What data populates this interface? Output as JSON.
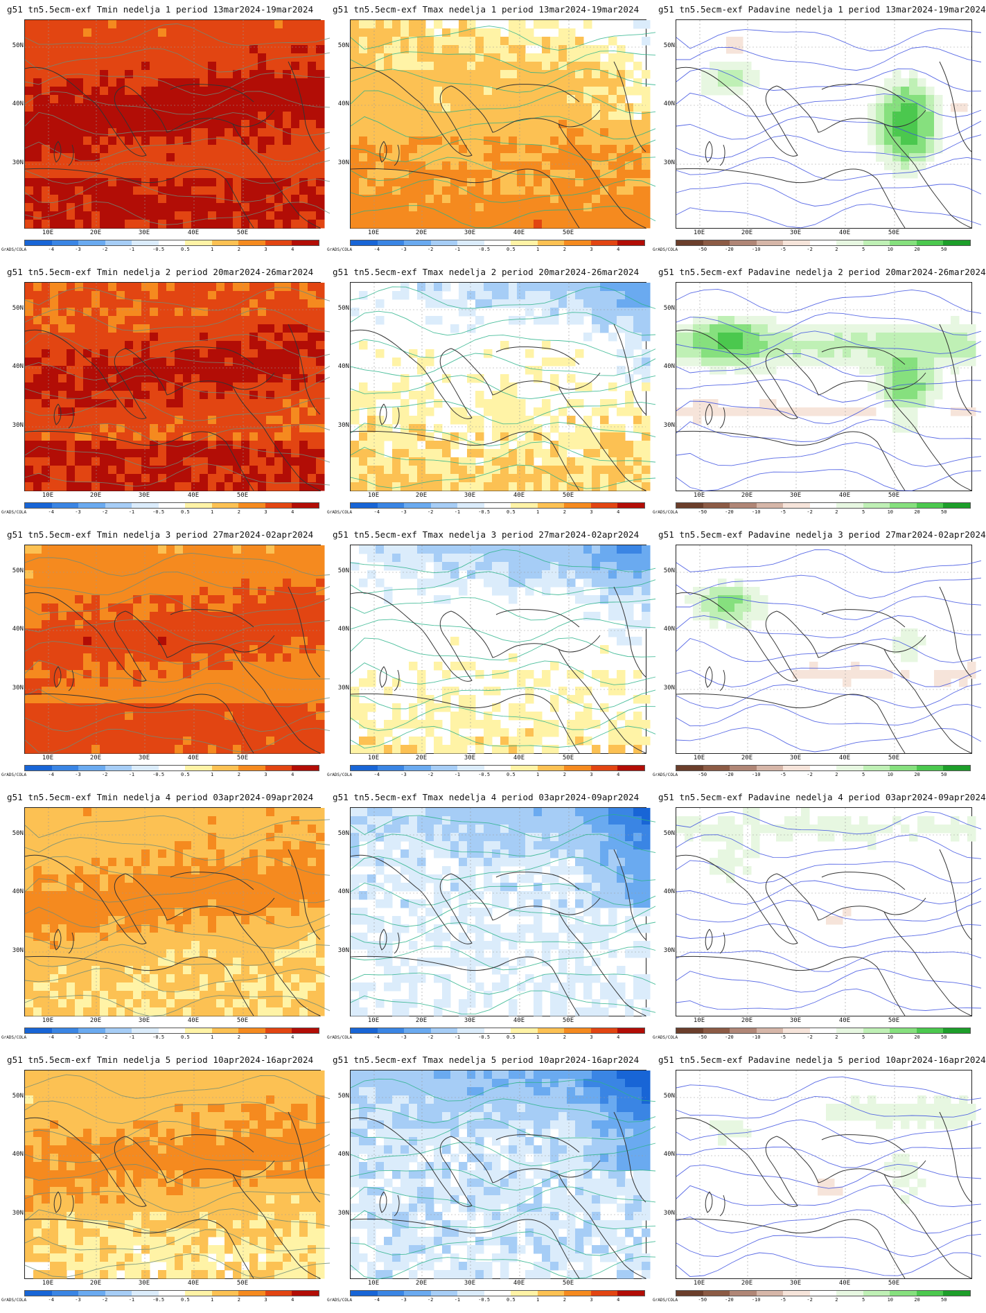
{
  "credit": "GrADS/COLA",
  "axes": {
    "lon_labels": [
      "10E",
      "20E",
      "30E",
      "40E",
      "50E"
    ],
    "lat_labels": [
      "50N",
      "40N",
      "30N"
    ]
  },
  "scales": {
    "temp": {
      "ticks": [
        "-4",
        "-3",
        "-2",
        "-1",
        "-0.5",
        "0.5",
        "1",
        "2",
        "3",
        "4"
      ],
      "colors": [
        "#1865d6",
        "#3a85e4",
        "#6aaaf0",
        "#a6cdf6",
        "#dbecfb",
        "#ffffff",
        "#fff3a6",
        "#fcc153",
        "#f58a1f",
        "#e24512",
        "#b20d06"
      ]
    },
    "precip": {
      "ticks": [
        "-50",
        "-20",
        "-10",
        "-5",
        "-2",
        "2",
        "5",
        "10",
        "20",
        "50"
      ],
      "colors": [
        "#6b3e2b",
        "#8c5b45",
        "#b08676",
        "#d6b6a8",
        "#f6e4da",
        "#ffffff",
        "#e7f7e1",
        "#bff0b5",
        "#86e07e",
        "#4bc84e",
        "#1d9e2a"
      ]
    }
  },
  "panels": [
    {
      "title": "g51 tn5.5ecm-exf Tmin nedelja 1 period 13mar2024-19mar2024",
      "variable": "Tmin",
      "week": 1
    },
    {
      "title": "g51 tn5.5ecm-exf Tmax nedelja 1 period 13mar2024-19mar2024",
      "variable": "Tmax",
      "week": 1
    },
    {
      "title": "g51 tn5.5ecm-exf Padavine nedelja 1 period 13mar2024-19mar2024",
      "variable": "Padavine",
      "week": 1
    },
    {
      "title": "g51 tn5.5ecm-exf Tmin nedelja 2 period 20mar2024-26mar2024",
      "variable": "Tmin",
      "week": 2
    },
    {
      "title": "g51 tn5.5ecm-exf Tmax nedelja 2 period 20mar2024-26mar2024",
      "variable": "Tmax",
      "week": 2
    },
    {
      "title": "g51 tn5.5ecm-exf Padavine nedelja 2 period 20mar2024-26mar2024",
      "variable": "Padavine",
      "week": 2
    },
    {
      "title": "g51 tn5.5ecm-exf Tmin nedelja 3 period 27mar2024-02apr2024",
      "variable": "Tmin",
      "week": 3
    },
    {
      "title": "g51 tn5.5ecm-exf Tmax nedelja 3 period 27mar2024-02apr2024",
      "variable": "Tmax",
      "week": 3
    },
    {
      "title": "g51 tn5.5ecm-exf Padavine nedelja 3 period 27mar2024-02apr2024",
      "variable": "Padavine",
      "week": 3
    },
    {
      "title": "g51 tn5.5ecm-exf Tmin nedelja 4 period 03apr2024-09apr2024",
      "variable": "Tmin",
      "week": 4
    },
    {
      "title": "g51 tn5.5ecm-exf Tmax nedelja 4 period 03apr2024-09apr2024",
      "variable": "Tmax",
      "week": 4
    },
    {
      "title": "g51 tn5.5ecm-exf Padavine nedelja 4 period 03apr2024-09apr2024",
      "variable": "Padavine",
      "week": 4
    },
    {
      "title": "g51 tn5.5ecm-exf Tmin nedelja 5 period 10apr2024-16apr2024",
      "variable": "Tmin",
      "week": 5
    },
    {
      "title": "g51 tn5.5ecm-exf Tmax nedelja 5 period 10apr2024-16apr2024",
      "variable": "Tmax",
      "week": 5
    },
    {
      "title": "g51 tn5.5ecm-exf Padavine nedelja 5 period 10apr2024-16apr2024",
      "variable": "Padavine",
      "week": 5
    }
  ]
}
